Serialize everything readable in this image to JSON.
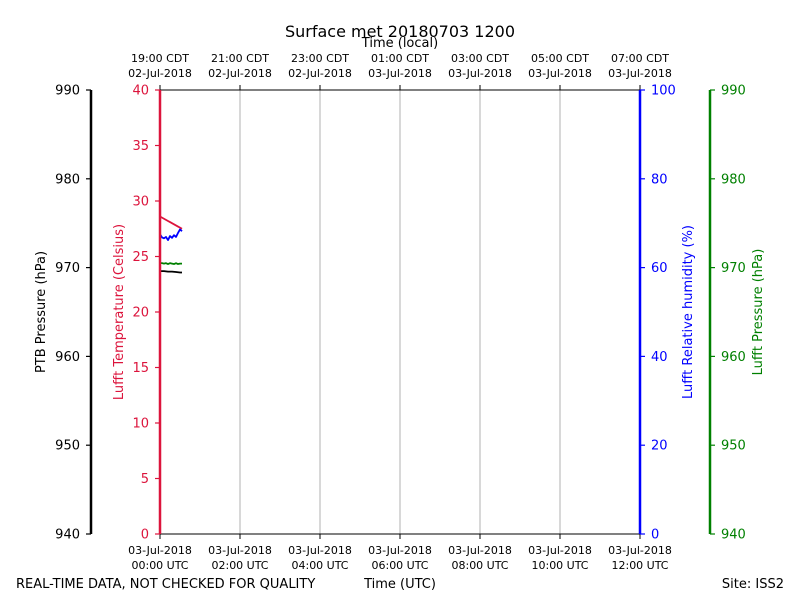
{
  "chart_data": {
    "type": "line",
    "title": "Surface met 20180703 1200",
    "top_xlabel": "Time (local)",
    "bottom_xlabel": "Time (UTC)",
    "footer_left": "REAL-TIME DATA, NOT CHECKED FOR QUALITY",
    "footer_right": "Site: ISS2",
    "x_hours_range": [
      0,
      12
    ],
    "bottom_ticks": [
      {
        "hour": 0,
        "line1": "03-Jul-2018",
        "line2": "00:00 UTC"
      },
      {
        "hour": 2,
        "line1": "03-Jul-2018",
        "line2": "02:00 UTC"
      },
      {
        "hour": 4,
        "line1": "03-Jul-2018",
        "line2": "04:00 UTC"
      },
      {
        "hour": 6,
        "line1": "03-Jul-2018",
        "line2": "06:00 UTC"
      },
      {
        "hour": 8,
        "line1": "03-Jul-2018",
        "line2": "08:00 UTC"
      },
      {
        "hour": 10,
        "line1": "03-Jul-2018",
        "line2": "10:00 UTC"
      },
      {
        "hour": 12,
        "line1": "03-Jul-2018",
        "line2": "12:00 UTC"
      }
    ],
    "top_ticks": [
      {
        "hour": 0,
        "line1": "19:00 CDT",
        "line2": "02-Jul-2018"
      },
      {
        "hour": 2,
        "line1": "21:00 CDT",
        "line2": "02-Jul-2018"
      },
      {
        "hour": 4,
        "line1": "23:00 CDT",
        "line2": "02-Jul-2018"
      },
      {
        "hour": 6,
        "line1": "01:00 CDT",
        "line2": "03-Jul-2018"
      },
      {
        "hour": 8,
        "line1": "03:00 CDT",
        "line2": "03-Jul-2018"
      },
      {
        "hour": 10,
        "line1": "05:00 CDT",
        "line2": "03-Jul-2018"
      },
      {
        "hour": 12,
        "line1": "07:00 CDT",
        "line2": "03-Jul-2018"
      }
    ],
    "axes": [
      {
        "key": "ptb_pressure",
        "label": "PTB Pressure (hPa)",
        "color": "#000000",
        "range": [
          940,
          990
        ],
        "ticks": [
          940,
          950,
          960,
          970,
          980,
          990
        ],
        "side": "left-outer"
      },
      {
        "key": "temperature",
        "label": "Lufft Temperature (Celsius)",
        "color": "#dc143c",
        "range": [
          0,
          40
        ],
        "ticks": [
          0,
          5,
          10,
          15,
          20,
          25,
          30,
          35,
          40
        ],
        "side": "left-inner"
      },
      {
        "key": "humidity",
        "label": "Lufft Relative humidity (%)",
        "color": "#0000ff",
        "range": [
          0,
          100
        ],
        "ticks": [
          0,
          20,
          40,
          60,
          80,
          100
        ],
        "side": "right-inner"
      },
      {
        "key": "lufft_pressure",
        "label": "Lufft Pressure (hPa)",
        "color": "#008000",
        "range": [
          940,
          990
        ],
        "ticks": [
          940,
          950,
          960,
          970,
          980,
          990
        ],
        "side": "right-outer"
      }
    ],
    "series": [
      {
        "name": "Lufft Temperature",
        "axis": "temperature",
        "color": "#dc143c",
        "x": [
          0.0,
          0.05,
          0.1,
          0.15,
          0.2,
          0.25,
          0.3,
          0.35,
          0.4,
          0.45,
          0.5,
          0.55
        ],
        "values": [
          28.6,
          28.5,
          28.4,
          28.3,
          28.2,
          28.1,
          28.0,
          27.9,
          27.8,
          27.7,
          27.6,
          27.5
        ]
      },
      {
        "name": "Lufft Relative humidity",
        "axis": "humidity",
        "color": "#0000ff",
        "x": [
          0.0,
          0.05,
          0.1,
          0.15,
          0.2,
          0.25,
          0.3,
          0.35,
          0.4,
          0.45,
          0.5,
          0.55
        ],
        "values": [
          67.5,
          66.8,
          66.6,
          66.9,
          66.2,
          67.1,
          66.7,
          67.3,
          66.9,
          67.8,
          68.6,
          68.2
        ]
      },
      {
        "name": "Lufft Pressure",
        "axis": "lufft_pressure",
        "color": "#008000",
        "x": [
          0.0,
          0.05,
          0.1,
          0.15,
          0.2,
          0.25,
          0.3,
          0.35,
          0.4,
          0.45,
          0.5,
          0.55
        ],
        "values": [
          970.5,
          970.5,
          970.45,
          970.5,
          970.4,
          970.5,
          970.45,
          970.4,
          970.5,
          970.4,
          970.45,
          970.45
        ]
      },
      {
        "name": "PTB Pressure",
        "axis": "ptb_pressure",
        "color": "#000000",
        "x": [
          0.0,
          0.1,
          0.2,
          0.3,
          0.4,
          0.5,
          0.55
        ],
        "values": [
          969.6,
          969.6,
          969.55,
          969.55,
          969.5,
          969.45,
          969.45
        ]
      }
    ]
  }
}
